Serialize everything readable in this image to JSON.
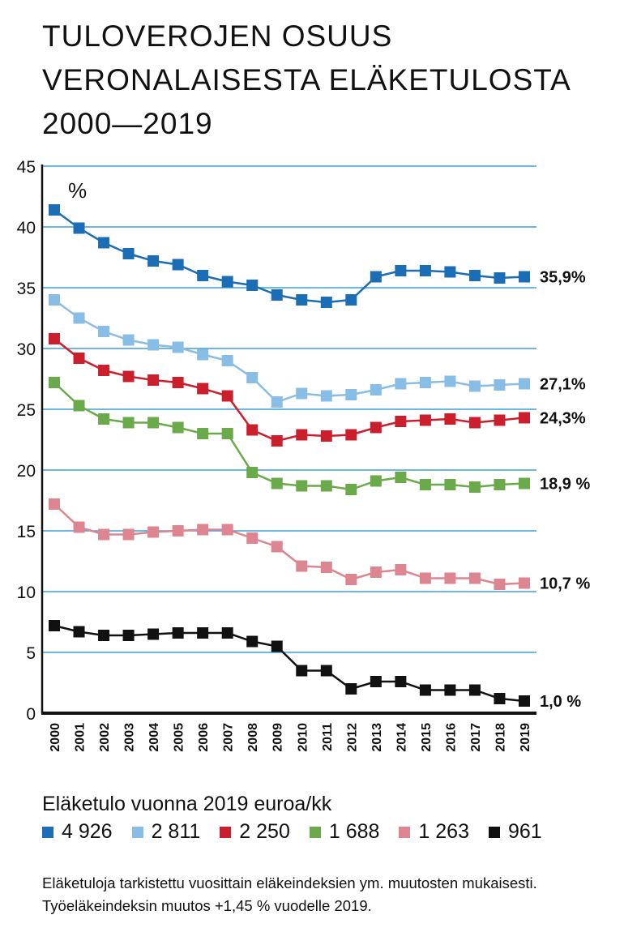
{
  "title_lines": [
    "TULOVEROJEN OSUUS",
    "VERONALAISESTA ELÄKETULOSTA",
    "2000—2019"
  ],
  "legend_title": "Eläketulo vuonna 2019 euroa/kk",
  "note": "Eläketuloja tarkistettu vuosittain eläkeindeksien ym. muutosten mukaisesti. Työeläkeindeksin muutos +1,45 % vuodelle 2019.",
  "chart_data": {
    "type": "line",
    "unit_label": "%",
    "x": [
      "2000",
      "2001",
      "2002",
      "2003",
      "2004",
      "2005",
      "2006",
      "2007",
      "2008",
      "2009",
      "2010",
      "2011",
      "2012",
      "2013",
      "2014",
      "2015",
      "2016",
      "2017",
      "2018",
      "2019"
    ],
    "ylim": [
      0,
      45
    ],
    "yticks": [
      "0",
      "5",
      "10",
      "15",
      "20",
      "25",
      "30",
      "35",
      "40",
      "45"
    ],
    "grid": true,
    "series": [
      {
        "name": "4 926",
        "color": "#1b6db5",
        "end_label": "35,9%",
        "values": [
          41.4,
          39.9,
          38.7,
          37.8,
          37.2,
          36.9,
          36.0,
          35.5,
          35.2,
          34.4,
          34.0,
          33.8,
          34.0,
          35.9,
          36.4,
          36.4,
          36.3,
          36.0,
          35.8,
          35.9
        ]
      },
      {
        "name": "2 811",
        "color": "#88bde6",
        "end_label": "27,1%",
        "values": [
          34.0,
          32.5,
          31.4,
          30.7,
          30.3,
          30.1,
          29.5,
          29.0,
          27.6,
          25.6,
          26.3,
          26.1,
          26.2,
          26.6,
          27.1,
          27.2,
          27.3,
          26.9,
          27.0,
          27.1
        ]
      },
      {
        "name": "2 250",
        "color": "#cc1f2d",
        "end_label": "24,3%",
        "values": [
          30.8,
          29.2,
          28.2,
          27.7,
          27.4,
          27.2,
          26.7,
          26.1,
          23.3,
          22.4,
          22.9,
          22.8,
          22.9,
          23.5,
          24.0,
          24.1,
          24.2,
          23.9,
          24.1,
          24.3
        ]
      },
      {
        "name": "1 688",
        "color": "#6aaa4a",
        "end_label": "18,9 %",
        "values": [
          27.2,
          25.3,
          24.2,
          23.9,
          23.9,
          23.5,
          23.0,
          23.0,
          19.8,
          18.9,
          18.7,
          18.7,
          18.4,
          19.1,
          19.4,
          18.8,
          18.8,
          18.6,
          18.8,
          18.9
        ]
      },
      {
        "name": "1 263",
        "color": "#dd8590",
        "end_label": "10,7 %",
        "values": [
          17.2,
          15.3,
          14.7,
          14.7,
          14.9,
          15.0,
          15.1,
          15.1,
          14.4,
          13.7,
          12.1,
          12.0,
          11.0,
          11.6,
          11.8,
          11.1,
          11.1,
          11.1,
          10.6,
          10.7
        ]
      },
      {
        "name": "961",
        "color": "#111111",
        "end_label": "1,0 %",
        "values": [
          7.2,
          6.7,
          6.4,
          6.4,
          6.5,
          6.6,
          6.6,
          6.6,
          5.9,
          5.5,
          3.5,
          3.5,
          2.0,
          2.6,
          2.6,
          1.9,
          1.9,
          1.9,
          1.2,
          1.0
        ]
      }
    ]
  }
}
